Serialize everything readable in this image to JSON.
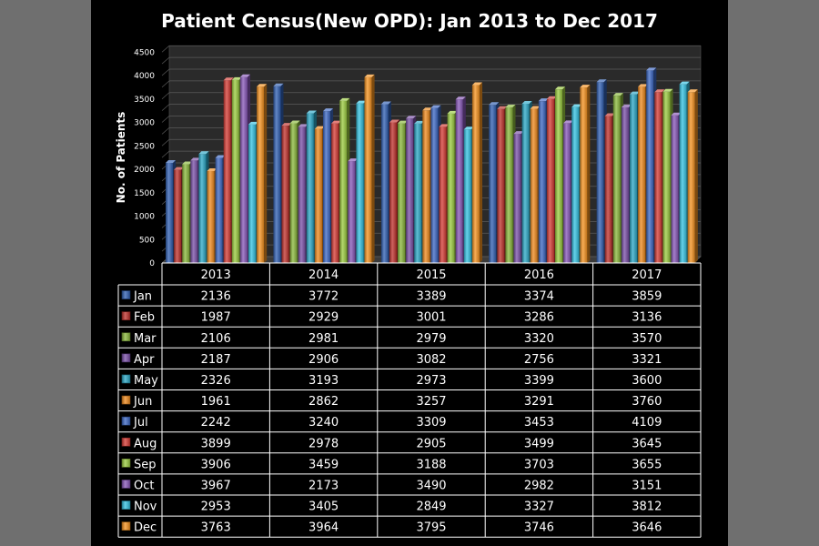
{
  "chart_data": {
    "type": "bar",
    "title": "Patient Census(New OPD): Jan 2013 to Dec 2017",
    "ylabel": "No. of Patients",
    "xlabel": "",
    "ylim": [
      0,
      4500
    ],
    "yticks": [
      0,
      250,
      500,
      750,
      1000,
      1250,
      1500,
      1750,
      2000,
      2250,
      2500,
      2750,
      3000,
      3250,
      3500,
      3750,
      4000,
      4250,
      4500
    ],
    "yticks_labeled": [
      "0",
      "500",
      "1000",
      "1500",
      "2000",
      "2500",
      "3000",
      "3500",
      "4000",
      "4500"
    ],
    "grid": true,
    "legend": "data-table",
    "categories": [
      "2013",
      "2014",
      "2015",
      "2016",
      "2017"
    ],
    "series": [
      {
        "name": "Jan",
        "color": "#2f5fb3",
        "values": [
          2136,
          3772,
          3389,
          3374,
          3859
        ]
      },
      {
        "name": "Feb",
        "color": "#c0302b",
        "values": [
          1987,
          2929,
          3001,
          3286,
          3136
        ]
      },
      {
        "name": "Mar",
        "color": "#8ab83a",
        "values": [
          2106,
          2981,
          2979,
          3320,
          3570
        ]
      },
      {
        "name": "Apr",
        "color": "#7a4fa8",
        "values": [
          2187,
          2906,
          3082,
          2756,
          3321
        ]
      },
      {
        "name": "May",
        "color": "#2aa8c7",
        "values": [
          2326,
          3193,
          2973,
          3399,
          3600
        ]
      },
      {
        "name": "Jun",
        "color": "#f08a1c",
        "values": [
          1961,
          2862,
          3257,
          3291,
          3760
        ]
      },
      {
        "name": "Jul",
        "color": "#3b67c4",
        "values": [
          2242,
          3240,
          3309,
          3453,
          4109
        ]
      },
      {
        "name": "Aug",
        "color": "#d63a33",
        "values": [
          3899,
          2978,
          2905,
          3499,
          3645
        ]
      },
      {
        "name": "Sep",
        "color": "#9bcc3e",
        "values": [
          3906,
          3459,
          3188,
          3703,
          3655
        ]
      },
      {
        "name": "Oct",
        "color": "#8756b8",
        "values": [
          3967,
          2173,
          3490,
          2982,
          3151
        ]
      },
      {
        "name": "Nov",
        "color": "#33c3e3",
        "values": [
          2953,
          3405,
          2849,
          3327,
          3812
        ]
      },
      {
        "name": "Dec",
        "color": "#f7931e",
        "values": [
          3763,
          3964,
          3795,
          3746,
          3646
        ]
      }
    ]
  }
}
